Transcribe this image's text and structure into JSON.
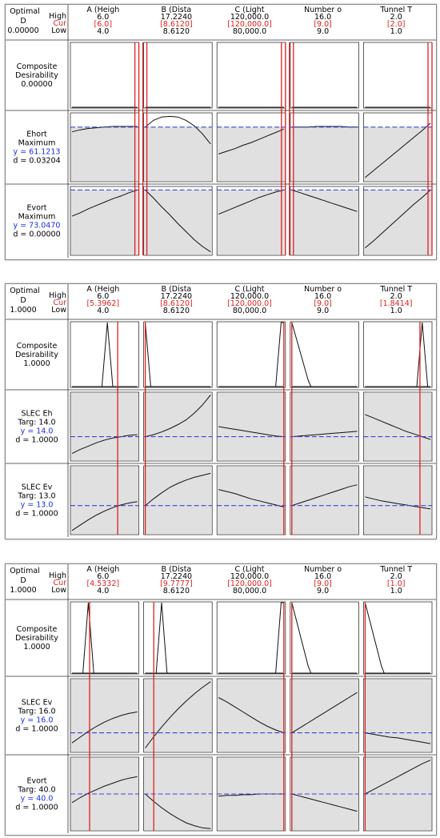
{
  "colors": {
    "current": "#e02020",
    "predicted": "#1a2ee6",
    "reference": "#3a44d6",
    "shade": "#e0e0e0",
    "curve": "#101010",
    "spike": "#7a0000"
  },
  "panels": [
    {
      "header": {
        "optimal_label": "Optimal",
        "d_label": "D",
        "d_value": "0.00000",
        "high_label": "High",
        "cur_label": "Cur",
        "low_label": "Low"
      },
      "factors": [
        {
          "name": "A (Heigh",
          "high": "6.0",
          "cur": "[6.0]",
          "low": "4.0"
        },
        {
          "name": "B (Dista",
          "high": "17.2240",
          "cur": "[8.6120]",
          "low": "8.6120"
        },
        {
          "name": "C (Light",
          "high": "120,000.0",
          "cur": "[120,000.0]",
          "low": "80,000.0"
        },
        {
          "name": "Number o",
          "high": "16.0",
          "cur": "[9.0]",
          "low": "9.0"
        },
        {
          "name": "Tunnel T",
          "high": "2.0",
          "cur": "[2.0]",
          "low": "1.0"
        }
      ],
      "rows": [
        {
          "name": "Composite",
          "lines": [
            "Desirability",
            "0.00000"
          ]
        },
        {
          "name": "Ehort",
          "lines": [
            "Maximum"
          ],
          "y": "y = 61.1213",
          "d": "d = 0.03204"
        },
        {
          "name": "Evort",
          "lines": [
            "Maximum"
          ],
          "y": "y = 73.0470",
          "d": "d = 0.00000"
        }
      ]
    },
    {
      "header": {
        "optimal_label": "Optimal",
        "d_label": "D",
        "d_value": "1.0000",
        "high_label": "High",
        "cur_label": "Cur",
        "low_label": "Low"
      },
      "factors": [
        {
          "name": "A (Heigh",
          "high": "6.0",
          "cur": "[5.3962]",
          "low": "4.0"
        },
        {
          "name": "B (Dista",
          "high": "17.2240",
          "cur": "[8.6120]",
          "low": "8.6120"
        },
        {
          "name": "C (Light",
          "high": "120,000.0",
          "cur": "[120,000.0]",
          "low": "80,000.0"
        },
        {
          "name": "Number o",
          "high": "16.0",
          "cur": "[9.0]",
          "low": "9.0"
        },
        {
          "name": "Tunnel T",
          "high": "2.0",
          "cur": "[1.8414]",
          "low": "1.0"
        }
      ],
      "rows": [
        {
          "name": "Composite",
          "lines": [
            "Desirability",
            "1.0000"
          ]
        },
        {
          "name": "SLEC Eh",
          "lines": [
            "Targ: 14.0"
          ],
          "y": "y = 14.0",
          "d": "d = 1.0000"
        },
        {
          "name": "SLEC Ev",
          "lines": [
            "Targ: 13.0"
          ],
          "y": "y = 13.0",
          "d": "d = 1.0000"
        }
      ]
    },
    {
      "header": {
        "optimal_label": "Optimal",
        "d_label": "D",
        "d_value": "1.0000",
        "high_label": "High",
        "cur_label": "Cur",
        "low_label": "Low"
      },
      "factors": [
        {
          "name": "A (Heigh",
          "high": "6.0",
          "cur": "[4.5332]",
          "low": "4.0"
        },
        {
          "name": "B (Dista",
          "high": "17.2240",
          "cur": "[9.7777]",
          "low": "8.6120"
        },
        {
          "name": "C (Light",
          "high": "120,000.0",
          "cur": "[120,000.0]",
          "low": "80,000.0"
        },
        {
          "name": "Number o",
          "high": "16.0",
          "cur": "[9.0]",
          "low": "9.0"
        },
        {
          "name": "Tunnel T",
          "high": "2.0",
          "cur": "[1.0]",
          "low": "1.0"
        }
      ],
      "rows": [
        {
          "name": "Composite",
          "lines": [
            "Desirability",
            "1.0000"
          ]
        },
        {
          "name": "SLEC Ev",
          "lines": [
            "Targ: 16.0"
          ],
          "y": "y = 16.0",
          "d": "d = 1.0000"
        },
        {
          "name": "Evort",
          "lines": [
            "Targ: 40.0"
          ],
          "y": "y = 40.0",
          "d": "d = 1.0000"
        }
      ]
    }
  ],
  "chart_data": [
    {
      "type": "line",
      "factor_current_fraction": [
        1.0,
        0.0,
        1.0,
        0.0,
        1.0
      ],
      "rows": [
        {
          "response": "Composite Desirability",
          "reference_level": 0.0,
          "shaded_region": [
            0.0,
            0.0
          ],
          "curves": [
            [
              0,
              0,
              0,
              0,
              0,
              0,
              0,
              0,
              0
            ],
            [
              0,
              0,
              0,
              0,
              0,
              0,
              0,
              0,
              0
            ],
            [
              0,
              0,
              0,
              0,
              0,
              0,
              0,
              0,
              0
            ],
            [
              0,
              0,
              0,
              0,
              0,
              0,
              0,
              0,
              0
            ],
            [
              0,
              0,
              0,
              0,
              0,
              0,
              0,
              0,
              0
            ]
          ]
        },
        {
          "response": "Ehort",
          "reference_level": 0.8,
          "shaded_region": [
            0.0,
            0.8
          ],
          "curves": [
            [
              0.73,
              0.76,
              0.78,
              0.79,
              0.8,
              0.81,
              0.81,
              0.81,
              0.81
            ],
            [
              0.8,
              0.9,
              0.95,
              0.96,
              0.95,
              0.9,
              0.82,
              0.7,
              0.55
            ],
            [
              0.4,
              0.44,
              0.48,
              0.53,
              0.57,
              0.62,
              0.67,
              0.72,
              0.77
            ],
            [
              0.8,
              0.8,
              0.8,
              0.81,
              0.81,
              0.81,
              0.81,
              0.8,
              0.8
            ],
            [
              0.05,
              0.15,
              0.25,
              0.35,
              0.45,
              0.55,
              0.65,
              0.75,
              0.86
            ]
          ]
        },
        {
          "response": "Evort",
          "reference_level": 0.96,
          "shaded_region": [
            0.0,
            0.96
          ],
          "curves": [
            [
              0.57,
              0.62,
              0.68,
              0.73,
              0.78,
              0.83,
              0.87,
              0.92,
              0.96
            ],
            [
              0.96,
              0.84,
              0.71,
              0.59,
              0.46,
              0.34,
              0.22,
              0.12,
              0.04
            ],
            [
              0.6,
              0.65,
              0.7,
              0.75,
              0.8,
              0.85,
              0.89,
              0.93,
              0.96
            ],
            [
              0.96,
              0.92,
              0.88,
              0.84,
              0.8,
              0.76,
              0.72,
              0.68,
              0.64
            ],
            [
              0.1,
              0.2,
              0.31,
              0.42,
              0.53,
              0.64,
              0.75,
              0.85,
              0.96
            ]
          ]
        }
      ]
    },
    {
      "type": "line",
      "factor_current_fraction": [
        0.7,
        0.0,
        1.0,
        0.0,
        0.84
      ],
      "rows": [
        {
          "response": "Composite Desirability",
          "reference_level": 0.0,
          "shaded_region": [
            0.0,
            0.0
          ],
          "curves": [
            [
              0,
              0,
              0,
              0,
              0,
              0,
              0,
              0,
              0,
              0,
              0,
              0,
              0.5,
              1.0,
              0.5,
              0,
              0,
              0,
              0,
              0,
              0,
              0,
              0,
              0,
              0
            ],
            [
              1.0,
              0.5,
              0,
              0,
              0,
              0,
              0,
              0,
              0,
              0,
              0,
              0,
              0,
              0,
              0,
              0,
              0,
              0,
              0,
              0,
              0,
              0,
              0,
              0,
              0
            ],
            [
              0,
              0,
              0,
              0,
              0,
              0,
              0,
              0,
              0,
              0,
              0,
              0,
              0,
              0,
              0,
              0,
              0,
              0,
              0,
              0,
              0,
              0,
              0.5,
              1.0,
              1.0
            ],
            [
              1.0,
              0.85,
              0.7,
              0.55,
              0.4,
              0.25,
              0.1,
              0,
              0,
              0,
              0,
              0,
              0,
              0,
              0,
              0,
              0,
              0,
              0,
              0,
              0,
              0,
              0,
              0,
              0
            ],
            [
              0,
              0,
              0,
              0,
              0,
              0,
              0,
              0,
              0,
              0,
              0,
              0,
              0,
              0,
              0,
              0,
              0,
              0,
              0,
              0,
              0.5,
              1.0,
              0.5,
              0,
              0
            ]
          ]
        },
        {
          "response": "SLEC Eh",
          "reference_level": 0.35,
          "shaded_region": [
            0.0,
            1.0
          ],
          "curves": [
            [
              0.1,
              0.16,
              0.21,
              0.26,
              0.3,
              0.33,
              0.35,
              0.37,
              0.38
            ],
            [
              0.35,
              0.38,
              0.42,
              0.47,
              0.53,
              0.6,
              0.7,
              0.82,
              0.97
            ],
            [
              0.5,
              0.48,
              0.46,
              0.44,
              0.42,
              0.4,
              0.38,
              0.36,
              0.35
            ],
            [
              0.35,
              0.36,
              0.37,
              0.38,
              0.39,
              0.4,
              0.41,
              0.42,
              0.43
            ],
            [
              0.68,
              0.63,
              0.58,
              0.53,
              0.48,
              0.43,
              0.39,
              0.35,
              0.31
            ]
          ]
        },
        {
          "response": "SLEC Ev",
          "reference_level": 0.42,
          "shaded_region": [
            0.0,
            1.0
          ],
          "curves": [
            [
              0.05,
              0.13,
              0.21,
              0.28,
              0.34,
              0.39,
              0.43,
              0.46,
              0.48
            ],
            [
              0.42,
              0.52,
              0.61,
              0.69,
              0.75,
              0.8,
              0.84,
              0.87,
              0.9
            ],
            [
              0.66,
              0.63,
              0.6,
              0.56,
              0.52,
              0.49,
              0.46,
              0.43,
              0.4
            ],
            [
              0.42,
              0.46,
              0.5,
              0.54,
              0.58,
              0.62,
              0.66,
              0.7,
              0.73
            ],
            [
              0.55,
              0.52,
              0.49,
              0.47,
              0.45,
              0.43,
              0.41,
              0.39,
              0.37
            ]
          ]
        }
      ]
    },
    {
      "type": "line",
      "factor_current_fraction": [
        0.27,
        0.13,
        1.0,
        0.0,
        0.0
      ],
      "rows": [
        {
          "response": "Composite Desirability",
          "reference_level": 0.0,
          "shaded_region": [
            0.0,
            0.0
          ],
          "curves": [
            [
              0,
              0,
              0,
              0,
              0,
              0.5,
              1.0,
              0.5,
              0,
              0,
              0,
              0,
              0,
              0,
              0,
              0,
              0,
              0,
              0,
              0,
              0,
              0,
              0,
              0,
              0
            ],
            [
              0,
              0,
              0,
              0,
              0,
              0.5,
              1.0,
              0.5,
              0,
              0,
              0,
              0,
              0,
              0,
              0,
              0,
              0,
              0,
              0,
              0,
              0,
              0,
              0,
              0,
              0
            ],
            [
              0,
              0,
              0,
              0,
              0,
              0,
              0,
              0,
              0,
              0,
              0,
              0,
              0,
              0,
              0,
              0,
              0,
              0,
              0,
              0,
              0,
              0,
              0.5,
              1.0,
              1.0
            ],
            [
              1.0,
              0.85,
              0.7,
              0.55,
              0.4,
              0.25,
              0.1,
              0,
              0,
              0,
              0,
              0,
              0,
              0,
              0,
              0,
              0,
              0,
              0,
              0,
              0,
              0,
              0,
              0,
              0
            ],
            [
              1.0,
              0.85,
              0.7,
              0.55,
              0.4,
              0.25,
              0.1,
              0,
              0,
              0,
              0,
              0,
              0,
              0,
              0,
              0,
              0,
              0,
              0,
              0,
              0,
              0,
              0,
              0,
              0
            ]
          ]
        },
        {
          "response": "SLEC Ev",
          "reference_level": 0.26,
          "shaded_region": [
            0.0,
            1.0
          ],
          "curves": [
            [
              0.12,
              0.2,
              0.28,
              0.35,
              0.41,
              0.46,
              0.5,
              0.53,
              0.55
            ],
            [
              0.05,
              0.2,
              0.34,
              0.47,
              0.59,
              0.7,
              0.8,
              0.89,
              0.97
            ],
            [
              0.75,
              0.69,
              0.62,
              0.55,
              0.48,
              0.41,
              0.35,
              0.3,
              0.26
            ],
            [
              0.26,
              0.33,
              0.4,
              0.47,
              0.54,
              0.61,
              0.68,
              0.75,
              0.82
            ],
            [
              0.26,
              0.24,
              0.22,
              0.2,
              0.19,
              0.17,
              0.15,
              0.13,
              0.11
            ]
          ]
        },
        {
          "response": "Evort",
          "reference_level": 0.5,
          "shaded_region": [
            0.0,
            1.0
          ],
          "curves": [
            [
              0.38,
              0.45,
              0.51,
              0.56,
              0.61,
              0.65,
              0.69,
              0.72,
              0.74
            ],
            [
              0.5,
              0.4,
              0.31,
              0.23,
              0.16,
              0.1,
              0.06,
              0.03,
              0.02
            ],
            [
              0.47,
              0.48,
              0.48,
              0.49,
              0.49,
              0.5,
              0.5,
              0.5,
              0.5
            ],
            [
              0.5,
              0.47,
              0.44,
              0.41,
              0.38,
              0.35,
              0.32,
              0.29,
              0.26
            ],
            [
              0.5,
              0.56,
              0.62,
              0.68,
              0.74,
              0.8,
              0.86,
              0.92,
              0.97
            ]
          ]
        }
      ]
    }
  ]
}
